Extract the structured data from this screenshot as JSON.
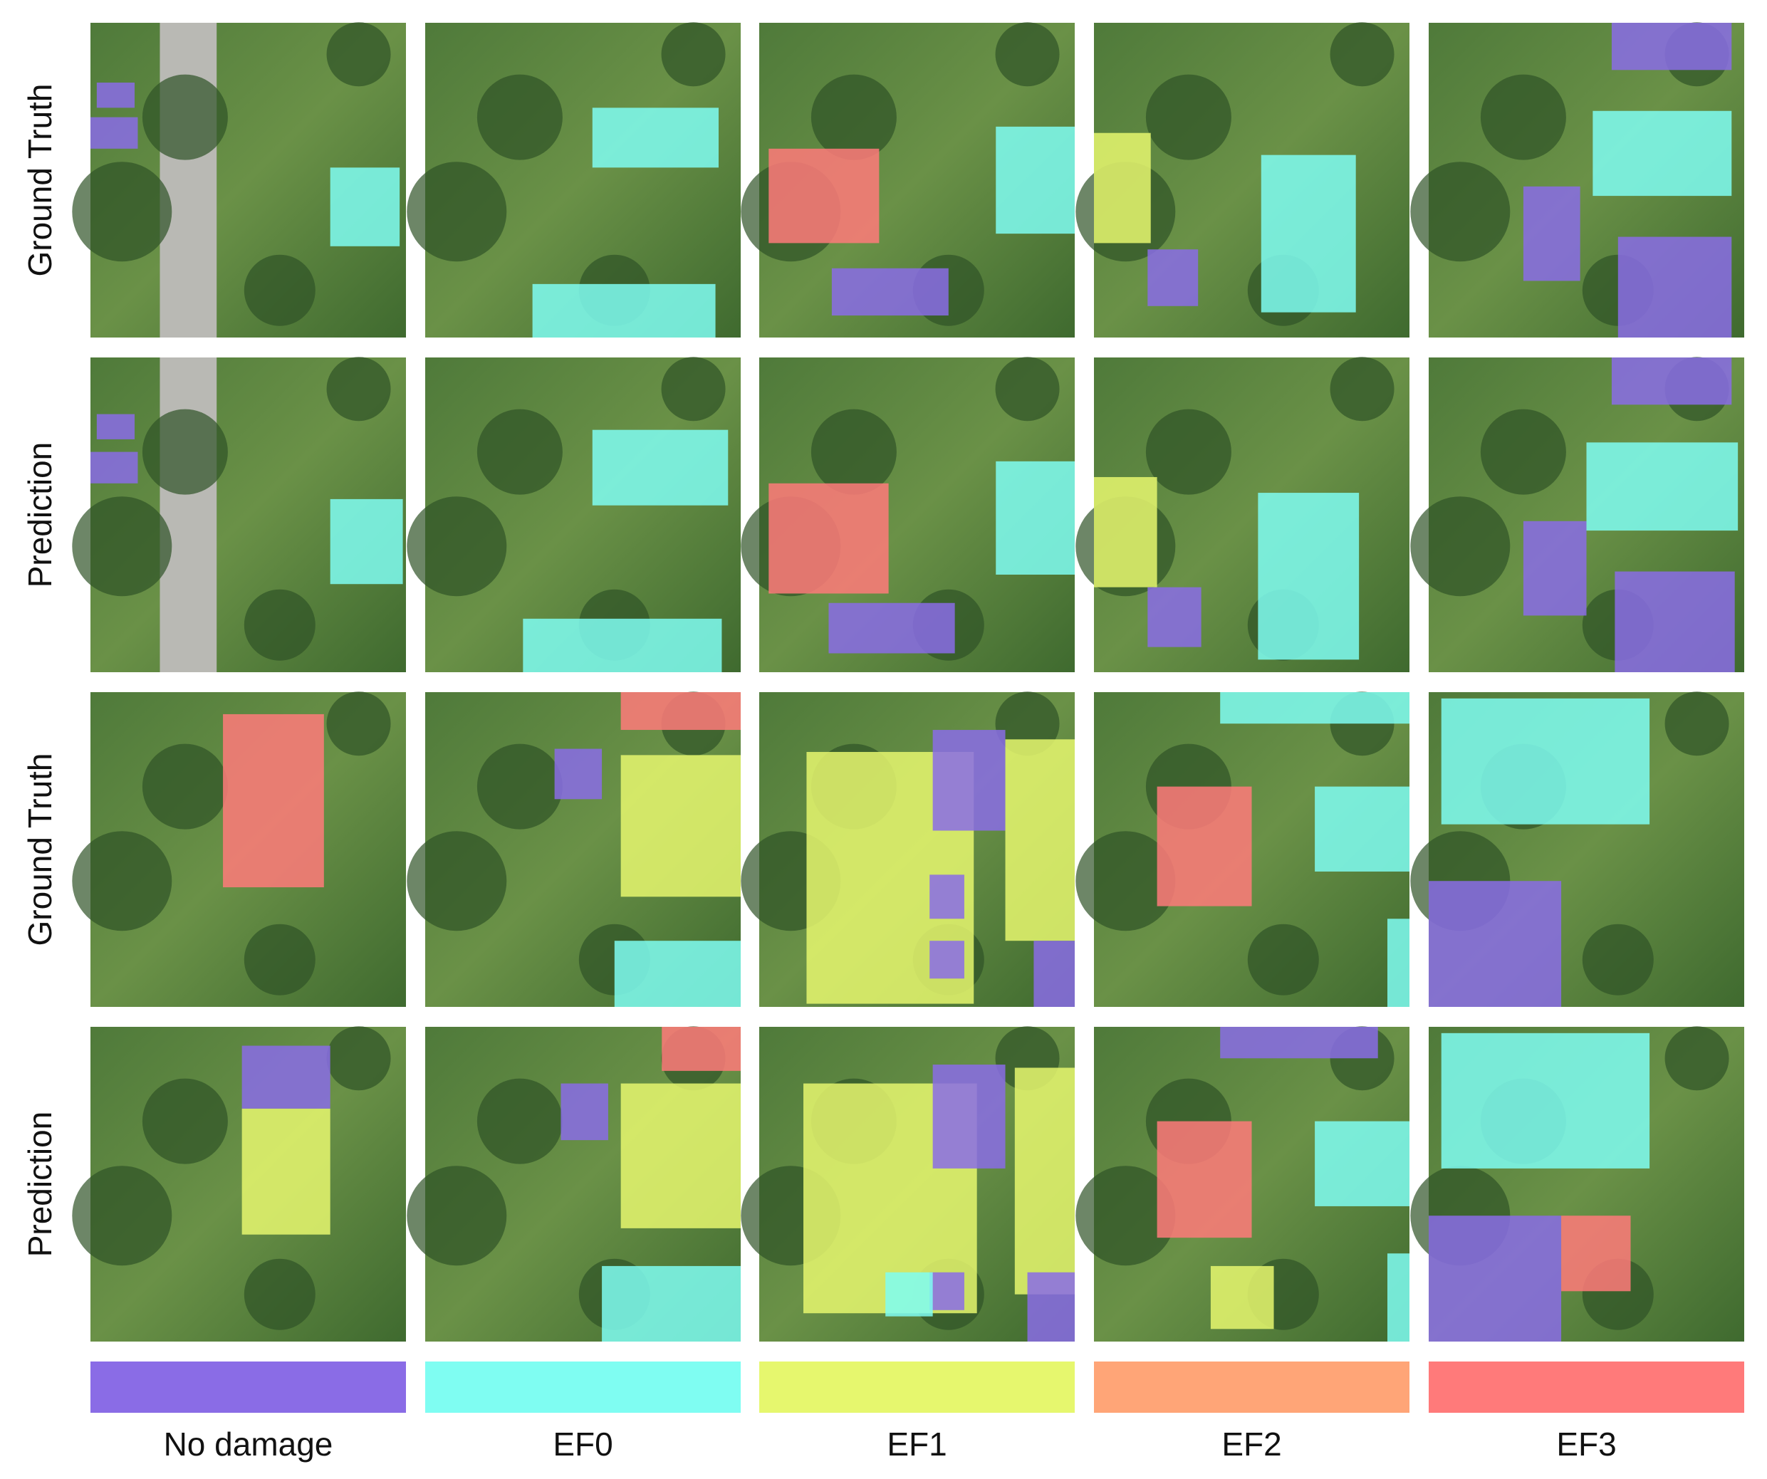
{
  "rows": [
    {
      "label": "Ground Truth"
    },
    {
      "label": "Prediction"
    },
    {
      "label": "Ground Truth"
    },
    {
      "label": "Prediction"
    }
  ],
  "legend": [
    {
      "label": "No damage",
      "color": "#8a6ce6"
    },
    {
      "label": "EF0",
      "color": "#7ffdf2"
    },
    {
      "label": "EF1",
      "color": "#e6f76e"
    },
    {
      "label": "EF2",
      "color": "#ffa577"
    },
    {
      "label": "EF3",
      "color": "#ff7a7a"
    }
  ]
}
